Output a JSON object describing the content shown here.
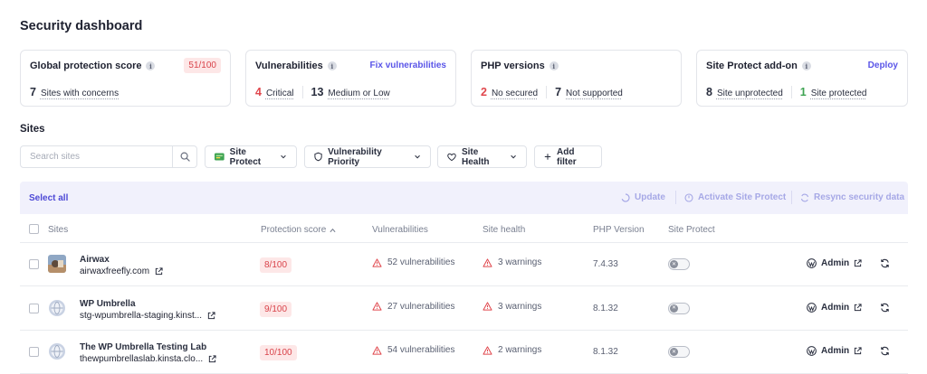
{
  "header": {
    "title": "Security dashboard"
  },
  "cards": {
    "global": {
      "title": "Global protection score",
      "score": "51/100",
      "count": "7",
      "count_label": "Sites with concerns"
    },
    "vulnerabilities": {
      "title": "Vulnerabilities",
      "action": "Fix vulnerabilities",
      "critical": "4",
      "critical_label": "Critical",
      "medium": "13",
      "medium_label": "Medium or Low"
    },
    "php": {
      "title": "PHP versions",
      "no_secured": "2",
      "no_secured_label": "No secured",
      "not_supported": "7",
      "not_supported_label": "Not supported"
    },
    "site_protect": {
      "title": "Site Protect add-on",
      "action": "Deploy",
      "unprotected": "8",
      "unprotected_label": "Site unprotected",
      "protected": "1",
      "protected_label": "Site protected"
    }
  },
  "sites_section": {
    "title": "Sites"
  },
  "filters": {
    "search_placeholder": "Search sites",
    "site_protect": "Site Protect",
    "vulnerability_priority": "Vulnerability Priority",
    "site_health": "Site Health",
    "add_filter": "Add filter"
  },
  "toolbar": {
    "select_all": "Select all",
    "update": "Update",
    "activate": "Activate Site Protect",
    "resync": "Resync security data"
  },
  "columns": {
    "sites": "Sites",
    "protection_score": "Protection score",
    "vulnerabilities": "Vulnerabilities",
    "site_health": "Site health",
    "php_version": "PHP Version",
    "site_protect": "Site Protect"
  },
  "rows": [
    {
      "name": "Airwax",
      "url": "airwaxfreefly.com",
      "score": "8/100",
      "vulns": "52 vulnerabilities",
      "health": "3 warnings",
      "php": "7.4.33",
      "admin": "Admin",
      "thumb": "photo"
    },
    {
      "name": "WP Umbrella",
      "url": "stg-wpumbrella-staging.kinst...",
      "score": "9/100",
      "vulns": "27 vulnerabilities",
      "health": "3 warnings",
      "php": "8.1.32",
      "admin": "Admin",
      "thumb": "globe"
    },
    {
      "name": "The WP Umbrella Testing Lab",
      "url": "thewpumbrellaslab.kinsta.clo...",
      "score": "10/100",
      "vulns": "54 vulnerabilities",
      "health": "2 warnings",
      "php": "8.1.32",
      "admin": "Admin",
      "thumb": "globe"
    }
  ],
  "colors": {
    "accent": "#5a55e8",
    "danger": "#e0474d",
    "success": "#3fa453",
    "toolbar_bg": "#f1f1fc"
  }
}
